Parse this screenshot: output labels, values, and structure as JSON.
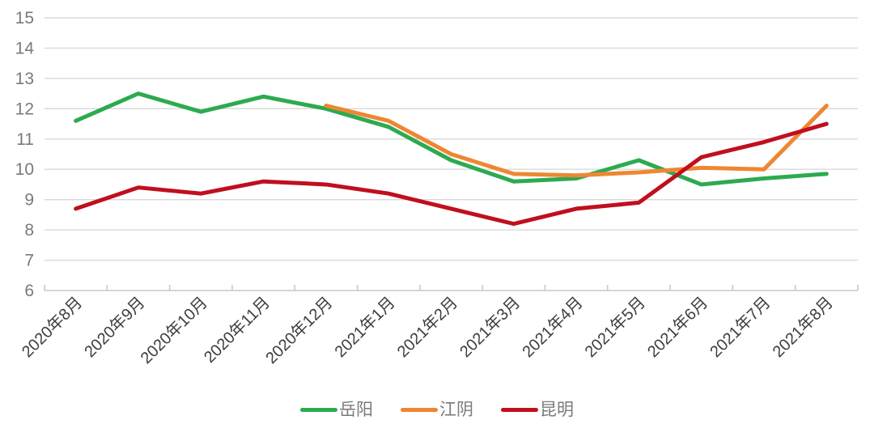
{
  "chart_data": {
    "type": "line",
    "categories": [
      "2020年8月",
      "2020年9月",
      "2020年10月",
      "2020年11月",
      "2020年12月",
      "2021年1月",
      "2021年2月",
      "2021年3月",
      "2021年4月",
      "2021年5月",
      "2021年6月",
      "2021年7月",
      "2021年8月"
    ],
    "series": [
      {
        "name": "岳阳",
        "color": "#2daa50",
        "values": [
          11.6,
          12.5,
          11.9,
          12.4,
          12.0,
          11.4,
          10.3,
          9.6,
          9.7,
          10.3,
          9.5,
          9.7,
          9.85
        ]
      },
      {
        "name": "江阴",
        "color": "#ed8733",
        "values": [
          null,
          null,
          null,
          null,
          12.1,
          11.6,
          10.5,
          9.85,
          9.8,
          9.9,
          10.05,
          10.0,
          12.1
        ]
      },
      {
        "name": "昆明",
        "color": "#c00f1e",
        "values": [
          8.7,
          9.4,
          9.2,
          9.6,
          9.5,
          9.2,
          8.7,
          8.2,
          8.7,
          8.9,
          10.4,
          10.9,
          11.5
        ]
      }
    ],
    "title": "",
    "xlabel": "",
    "ylabel": "",
    "ylim": [
      6,
      15
    ],
    "ytick_step": 1,
    "grid": "horizontal",
    "legend_position": "bottom",
    "styles": {
      "gridline_color": "#d9d9d9",
      "axis_color": "#c9c9c9",
      "y_label_color": "#7a7a7a",
      "x_label_color": "#3d3d3d",
      "line_width": 5,
      "x_label_rotation_deg": -45
    }
  }
}
